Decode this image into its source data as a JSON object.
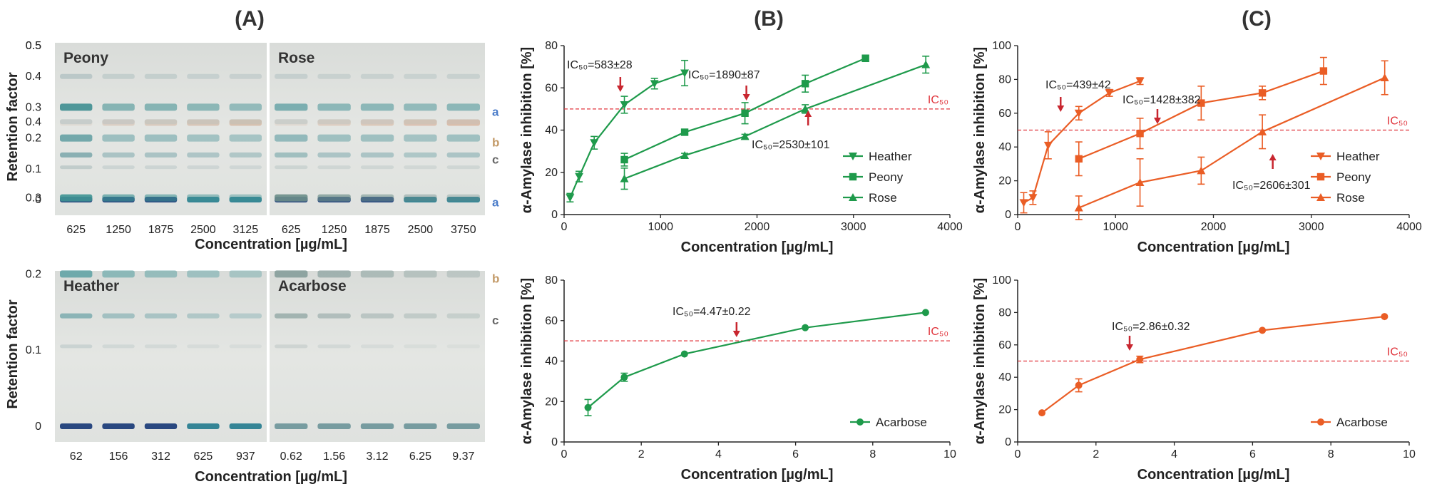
{
  "figure": {
    "panel_labels": [
      "(A)",
      "(B)",
      "(C)"
    ],
    "colors": {
      "B": "#1e9a4b",
      "C": "#ea5d25",
      "ic50_line": "#e0333b",
      "arrow": "#c8262f"
    }
  },
  "plates": {
    "ylabel": "Retention factor",
    "yticks": [
      "0.5",
      "0.4",
      "0.3",
      "0.2",
      "0.1",
      "0"
    ],
    "xlabel": "Concentration  [µg/mL]",
    "band_letters": [
      {
        "name": "a",
        "color": "#4a7cc9"
      },
      {
        "name": "b",
        "color": "#c39a68"
      },
      {
        "name": "c",
        "color": "#666666"
      }
    ],
    "rows": [
      {
        "tiles": [
          {
            "name": "Peony",
            "lanes": [
              "625",
              "1250",
              "1875",
              "2500",
              "3125"
            ]
          },
          {
            "name": "Rose",
            "lanes": [
              "625",
              "1250",
              "1875",
              "2500",
              "3750"
            ]
          }
        ]
      },
      {
        "tiles": [
          {
            "name": "Heather",
            "lanes": [
              "62",
              "156",
              "312",
              "625",
              "937"
            ]
          },
          {
            "name": "Acarbose",
            "lanes": [
              "0.62",
              "1.56",
              "3.12",
              "6.25",
              "9.37"
            ]
          }
        ]
      }
    ]
  },
  "chart_data": [
    {
      "id": "B-top",
      "type": "line",
      "title": "(B)",
      "xlabel": "Concentration  [µg/mL]",
      "ylabel": "α-Amylase inhibition [%]",
      "xlim": [
        0,
        4000
      ],
      "ylim": [
        0,
        80
      ],
      "xticks": [
        0,
        1000,
        2000,
        3000,
        4000
      ],
      "yticks": [
        0,
        20,
        40,
        60,
        80
      ],
      "ic50_ref": {
        "value": 50,
        "label": "IC₅₀"
      },
      "series": [
        {
          "name": "Heather",
          "marker": "tri-down",
          "x": [
            62,
            156,
            312,
            625,
            937,
            1250
          ],
          "y": [
            8,
            18,
            34,
            52,
            62,
            67
          ],
          "err": [
            2,
            2.5,
            3,
            4,
            2.5,
            6
          ]
        },
        {
          "name": "Peony",
          "marker": "square",
          "x": [
            625,
            1250,
            1875,
            2500,
            3125
          ],
          "y": [
            26,
            39,
            48,
            62,
            74
          ],
          "err": [
            3,
            1,
            5,
            4,
            1.5
          ]
        },
        {
          "name": "Rose",
          "marker": "tri-up",
          "x": [
            625,
            1250,
            1875,
            2500,
            3750
          ],
          "y": [
            17,
            28,
            37,
            50,
            71
          ],
          "err": [
            5,
            1,
            1,
            2,
            4
          ]
        }
      ],
      "annotations": [
        {
          "text": "IC₅₀=583±28",
          "x": 583,
          "dir": "down"
        },
        {
          "text": "IC₅₀=1890±87",
          "x": 1890,
          "dir": "down"
        },
        {
          "text": "IC₅₀=2530±101",
          "x": 2530,
          "dir": "up"
        }
      ]
    },
    {
      "id": "B-bottom",
      "type": "line",
      "xlabel": "Concentration  [µg/mL]",
      "ylabel": "α-Amylase inhibition [%]",
      "xlim": [
        0,
        10
      ],
      "ylim": [
        0,
        80
      ],
      "xticks": [
        0,
        2,
        4,
        6,
        8,
        10
      ],
      "yticks": [
        0,
        20,
        40,
        60,
        80
      ],
      "ic50_ref": {
        "value": 50,
        "label": "IC₅₀"
      },
      "series": [
        {
          "name": "Acarbose",
          "marker": "circle",
          "x": [
            0.62,
            1.56,
            3.12,
            6.25,
            9.37
          ],
          "y": [
            17,
            32,
            43.5,
            56.5,
            64
          ],
          "err": [
            4,
            2,
            0,
            0,
            0
          ]
        }
      ],
      "annotations": [
        {
          "text": "IC₅₀=4.47±0.22",
          "x": 4.47,
          "dir": "down"
        }
      ]
    },
    {
      "id": "C-top",
      "type": "line",
      "title": "(C)",
      "xlabel": "Concentration  [µg/mL]",
      "ylabel": "α-Amylase inhibition [%]",
      "xlim": [
        0,
        4000
      ],
      "ylim": [
        0,
        100
      ],
      "xticks": [
        0,
        1000,
        2000,
        3000,
        4000
      ],
      "yticks": [
        0,
        20,
        40,
        60,
        80,
        100
      ],
      "ic50_ref": {
        "value": 50,
        "label": "IC₅₀"
      },
      "series": [
        {
          "name": "Heather",
          "marker": "tri-down",
          "x": [
            62,
            156,
            312,
            625,
            937,
            1250
          ],
          "y": [
            7,
            10,
            41,
            60,
            72,
            79
          ],
          "err": [
            6,
            4,
            8,
            4,
            2,
            2
          ]
        },
        {
          "name": "Peony",
          "marker": "square",
          "x": [
            625,
            1250,
            1875,
            2500,
            3125
          ],
          "y": [
            33,
            48,
            66,
            72,
            85
          ],
          "err": [
            10,
            9,
            10,
            4,
            8
          ]
        },
        {
          "name": "Rose",
          "marker": "tri-up",
          "x": [
            625,
            1250,
            1875,
            2500,
            3750
          ],
          "y": [
            4,
            19,
            26,
            49,
            81
          ],
          "err": [
            7,
            14,
            8,
            10,
            10
          ]
        }
      ],
      "annotations": [
        {
          "text": "IC₅₀=439±42",
          "x": 439,
          "dir": "down"
        },
        {
          "text": "IC₅₀=1428±382",
          "x": 1428,
          "dir": "down"
        },
        {
          "text": "IC₅₀=2606±301",
          "x": 2606,
          "dir": "up"
        }
      ]
    },
    {
      "id": "C-bottom",
      "type": "line",
      "xlabel": "Concentration  [µg/mL]",
      "ylabel": "α-Amylase inhibition [%]",
      "xlim": [
        0,
        10
      ],
      "ylim": [
        0,
        100
      ],
      "xticks": [
        0,
        2,
        4,
        6,
        8,
        10
      ],
      "yticks": [
        0,
        20,
        40,
        60,
        80,
        100
      ],
      "ic50_ref": {
        "value": 50,
        "label": "IC₅₀"
      },
      "series": [
        {
          "name": "Acarbose",
          "marker": "circle",
          "x": [
            0.62,
            1.56,
            3.12,
            6.25,
            9.37
          ],
          "y": [
            18,
            35,
            51,
            69,
            77.5
          ],
          "err": [
            0,
            4,
            2,
            0,
            0
          ]
        }
      ],
      "annotations": [
        {
          "text": "IC₅₀=2.86±0.32",
          "x": 2.86,
          "dir": "down"
        }
      ]
    }
  ]
}
